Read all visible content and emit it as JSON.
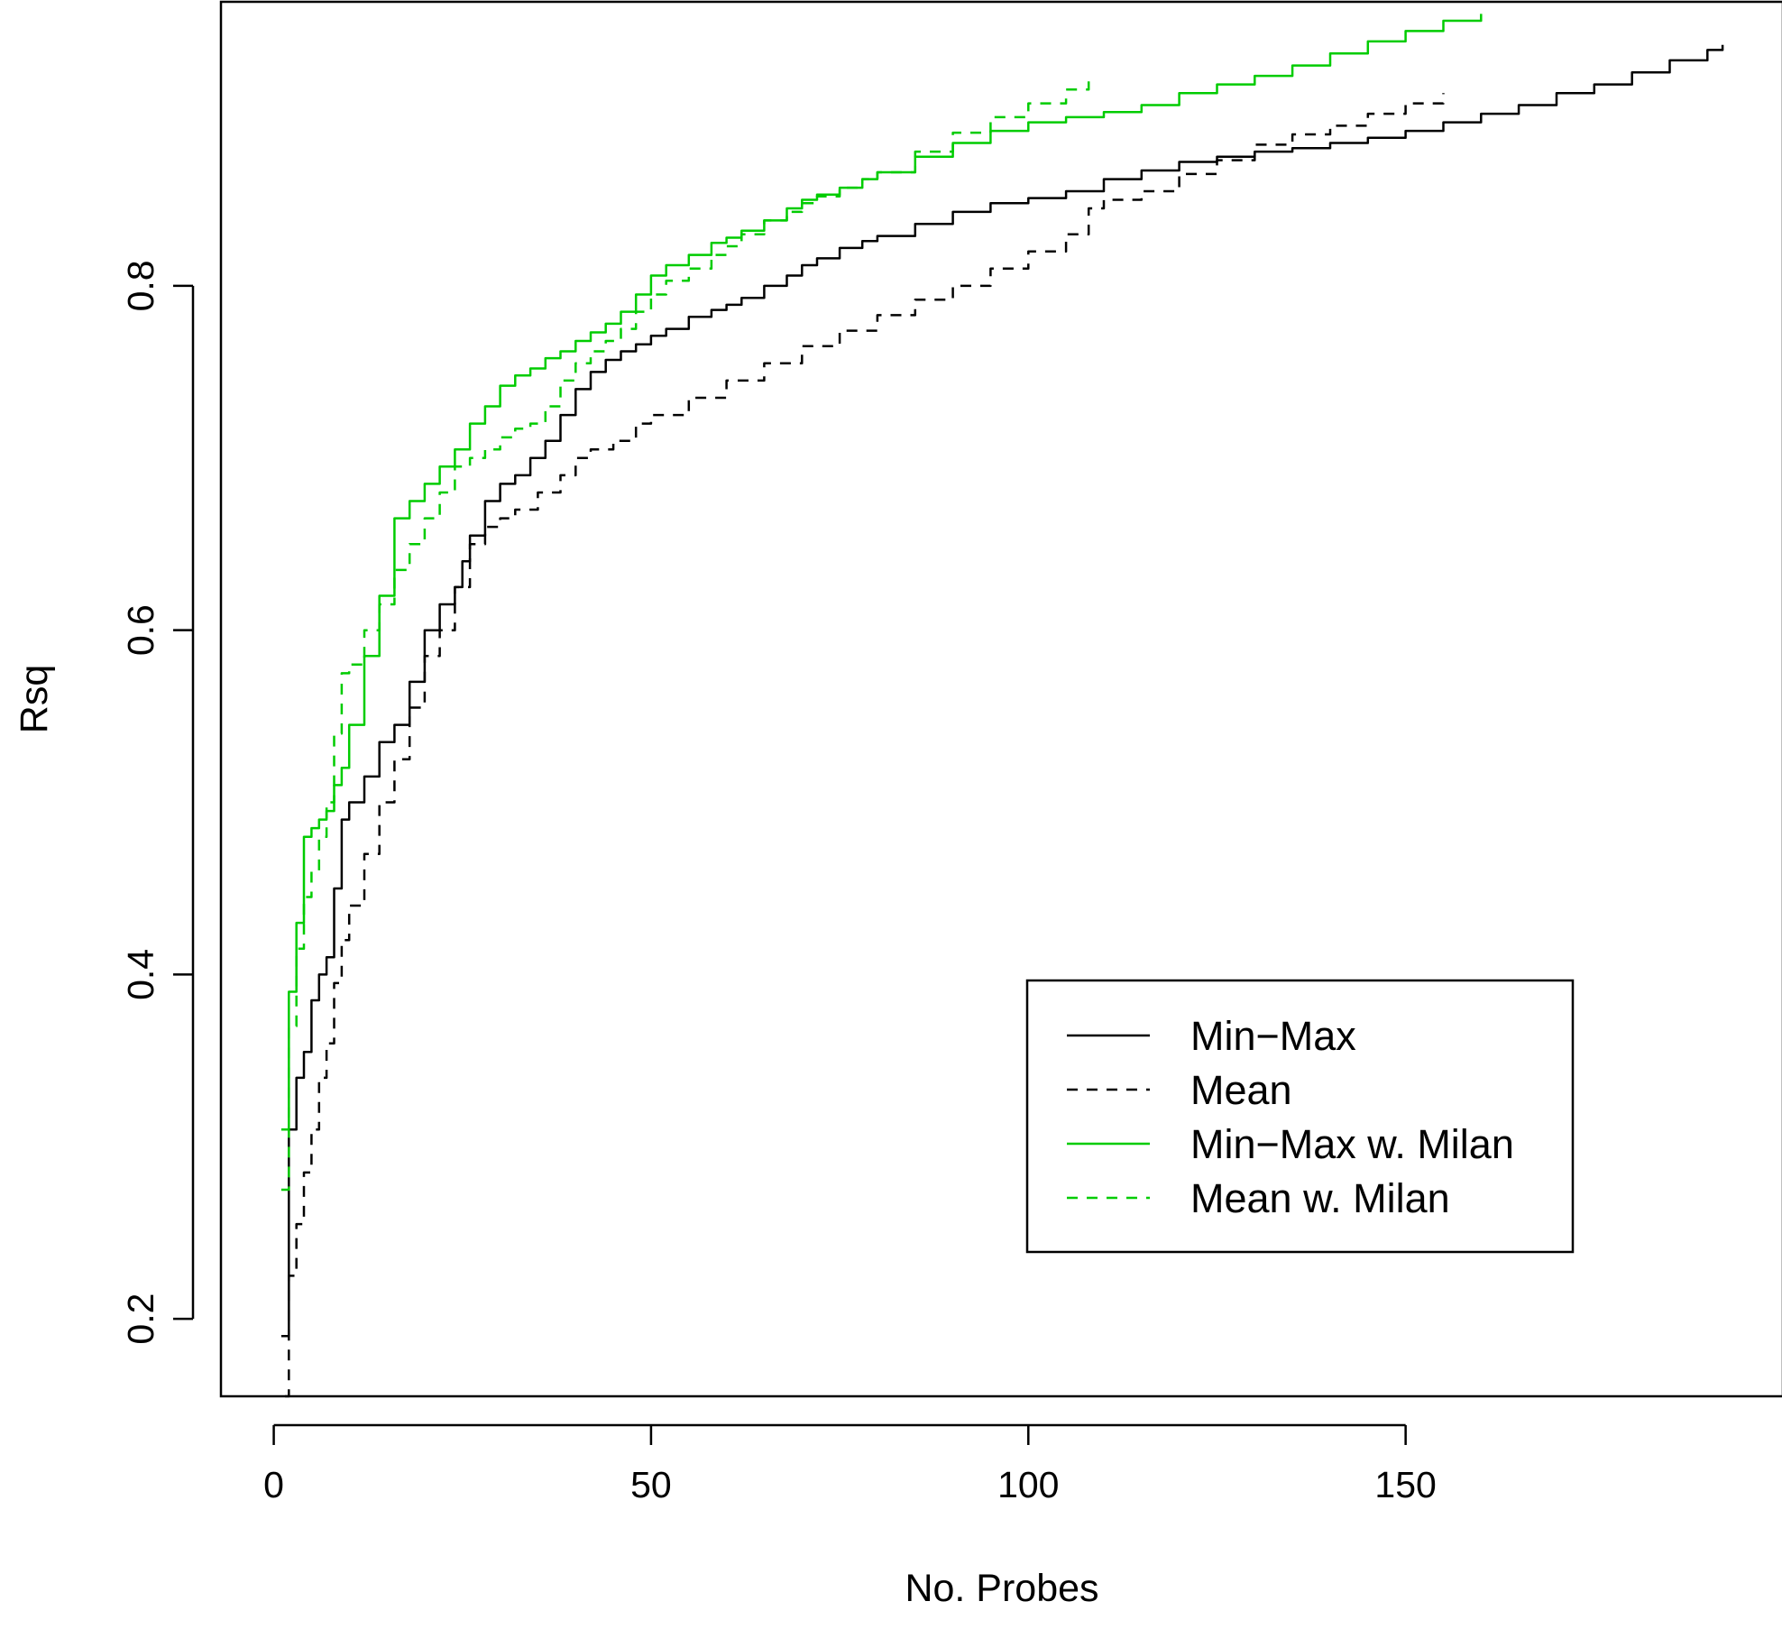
{
  "chart_data": {
    "type": "line",
    "title": "",
    "xlabel": "No. Probes",
    "ylabel": "Rsq",
    "xlim": [
      -7,
      200
    ],
    "ylim": [
      0.155,
      0.965
    ],
    "xticks": [
      0,
      50,
      100,
      150
    ],
    "yticks": [
      0.2,
      0.4,
      0.6,
      0.8
    ],
    "grid": false,
    "legend_position": "bottom-right",
    "series": [
      {
        "name": "Min−Max",
        "color": "#000000",
        "dash": "solid",
        "x": [
          1,
          2,
          3,
          4,
          5,
          6,
          7,
          8,
          9,
          10,
          12,
          14,
          16,
          18,
          20,
          22,
          24,
          25,
          26,
          28,
          30,
          32,
          34,
          36,
          38,
          40,
          42,
          44,
          46,
          48,
          50,
          52,
          55,
          58,
          60,
          62,
          65,
          68,
          70,
          72,
          75,
          78,
          80,
          85,
          90,
          95,
          100,
          105,
          110,
          115,
          120,
          125,
          130,
          135,
          140,
          145,
          150,
          155,
          160,
          165,
          170,
          175,
          180,
          185,
          190,
          192
        ],
        "y": [
          0.19,
          0.31,
          0.34,
          0.355,
          0.385,
          0.4,
          0.41,
          0.45,
          0.49,
          0.5,
          0.515,
          0.535,
          0.545,
          0.57,
          0.6,
          0.615,
          0.625,
          0.64,
          0.655,
          0.675,
          0.685,
          0.69,
          0.7,
          0.71,
          0.725,
          0.74,
          0.75,
          0.757,
          0.762,
          0.766,
          0.771,
          0.775,
          0.782,
          0.786,
          0.789,
          0.793,
          0.8,
          0.806,
          0.812,
          0.816,
          0.822,
          0.826,
          0.829,
          0.836,
          0.843,
          0.848,
          0.851,
          0.855,
          0.862,
          0.867,
          0.872,
          0.875,
          0.878,
          0.88,
          0.883,
          0.886,
          0.89,
          0.895,
          0.9,
          0.905,
          0.912,
          0.917,
          0.924,
          0.931,
          0.937,
          0.94
        ]
      },
      {
        "name": "Mean",
        "color": "#000000",
        "dash": "dashed",
        "x": [
          1.5,
          2,
          3,
          4,
          5,
          6,
          7,
          8,
          9,
          10,
          12,
          14,
          16,
          18,
          20,
          22,
          24,
          26,
          28,
          30,
          32,
          35,
          38,
          40,
          42,
          45,
          48,
          50,
          55,
          60,
          65,
          70,
          75,
          80,
          85,
          90,
          95,
          100,
          105,
          108,
          110,
          115,
          120,
          125,
          130,
          135,
          140,
          145,
          150,
          155
        ],
        "y": [
          0.155,
          0.225,
          0.255,
          0.285,
          0.31,
          0.34,
          0.36,
          0.395,
          0.42,
          0.44,
          0.47,
          0.5,
          0.525,
          0.555,
          0.585,
          0.6,
          0.625,
          0.65,
          0.66,
          0.665,
          0.67,
          0.68,
          0.69,
          0.7,
          0.705,
          0.71,
          0.72,
          0.725,
          0.735,
          0.745,
          0.755,
          0.765,
          0.774,
          0.783,
          0.792,
          0.8,
          0.81,
          0.82,
          0.83,
          0.845,
          0.85,
          0.855,
          0.865,
          0.873,
          0.882,
          0.888,
          0.893,
          0.9,
          0.906,
          0.912
        ]
      },
      {
        "name": "Min−Max w. Milan",
        "color": "#00cc00",
        "dash": "solid",
        "x": [
          1,
          2,
          3,
          4,
          5,
          6,
          7,
          8,
          9,
          10,
          12,
          14,
          16,
          18,
          20,
          22,
          24,
          26,
          28,
          30,
          32,
          34,
          36,
          38,
          40,
          42,
          44,
          46,
          48,
          50,
          52,
          55,
          58,
          60,
          62,
          65,
          68,
          70,
          72,
          75,
          78,
          80,
          85,
          90,
          95,
          100,
          105,
          110,
          115,
          120,
          125,
          130,
          135,
          140,
          145,
          150,
          155,
          160
        ],
        "y": [
          0.31,
          0.39,
          0.43,
          0.48,
          0.485,
          0.49,
          0.495,
          0.51,
          0.52,
          0.545,
          0.585,
          0.62,
          0.665,
          0.675,
          0.685,
          0.695,
          0.705,
          0.72,
          0.73,
          0.742,
          0.748,
          0.752,
          0.758,
          0.762,
          0.768,
          0.773,
          0.778,
          0.785,
          0.795,
          0.806,
          0.812,
          0.818,
          0.825,
          0.828,
          0.832,
          0.838,
          0.845,
          0.85,
          0.853,
          0.857,
          0.862,
          0.866,
          0.875,
          0.883,
          0.89,
          0.895,
          0.898,
          0.901,
          0.905,
          0.912,
          0.917,
          0.922,
          0.928,
          0.935,
          0.942,
          0.948,
          0.954,
          0.958
        ]
      },
      {
        "name": "Mean w. Milan",
        "color": "#00cc00",
        "dash": "dashed",
        "x": [
          1,
          2,
          3,
          4,
          5,
          6,
          7,
          8,
          9,
          10,
          12,
          14,
          16,
          18,
          20,
          22,
          24,
          26,
          28,
          30,
          32,
          34,
          36,
          38,
          40,
          42,
          44,
          46,
          48,
          50,
          52,
          55,
          58,
          60,
          62,
          65,
          68,
          70,
          72,
          75,
          78,
          80,
          85,
          90,
          95,
          100,
          105,
          108
        ],
        "y": [
          0.275,
          0.37,
          0.415,
          0.445,
          0.46,
          0.48,
          0.5,
          0.54,
          0.575,
          0.58,
          0.6,
          0.615,
          0.635,
          0.65,
          0.665,
          0.68,
          0.695,
          0.7,
          0.705,
          0.712,
          0.717,
          0.72,
          0.73,
          0.745,
          0.755,
          0.762,
          0.768,
          0.775,
          0.785,
          0.795,
          0.803,
          0.81,
          0.818,
          0.823,
          0.83,
          0.838,
          0.843,
          0.848,
          0.852,
          0.857,
          0.862,
          0.866,
          0.878,
          0.889,
          0.898,
          0.906,
          0.914,
          0.92
        ]
      }
    ]
  }
}
